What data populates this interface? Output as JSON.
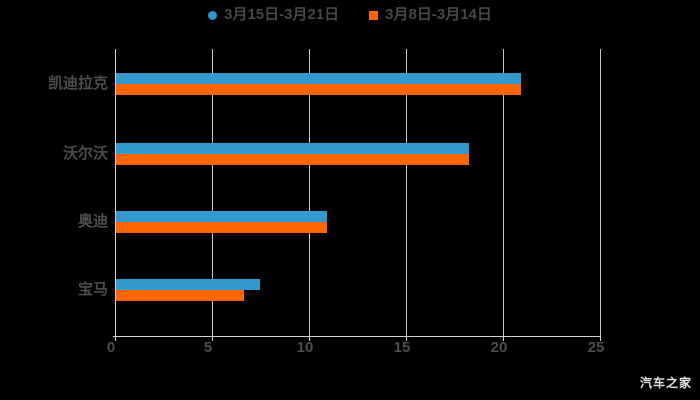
{
  "legend": {
    "items": [
      {
        "label": "3月15日-3月21日",
        "marker": "circle",
        "color": "#3399cc"
      },
      {
        "label": "3月8日-3月14日",
        "marker": "square",
        "color": "#ff6600"
      }
    ]
  },
  "chart_data": {
    "type": "bar",
    "orientation": "horizontal",
    "title": "",
    "categories_top_to_bottom": [
      "凯迪拉克",
      "沃尔沃",
      "奥迪",
      "宝马"
    ],
    "series": [
      {
        "name": "3月15日-3月21日",
        "color": "#3399cc",
        "values": [
          20.9,
          18.2,
          10.9,
          7.4
        ]
      },
      {
        "name": "3月8日-3月14日",
        "color": "#ff6600",
        "values": [
          20.9,
          18.2,
          10.9,
          6.6
        ]
      }
    ],
    "xlabel": "",
    "ylabel": "",
    "xlim": [
      0,
      25
    ],
    "xticks": [
      0,
      5,
      10,
      15,
      20,
      25
    ],
    "grid": true,
    "legend_position": "top",
    "background_color": "#000000"
  },
  "watermark": "汽车之家",
  "styles": {
    "axis_color": "#d2d2d2",
    "grid_color": "#c6c6c6",
    "text_color": "#4d4d4d",
    "legend_text_color": "#474747",
    "watermark_color": "#e5e5e5"
  }
}
